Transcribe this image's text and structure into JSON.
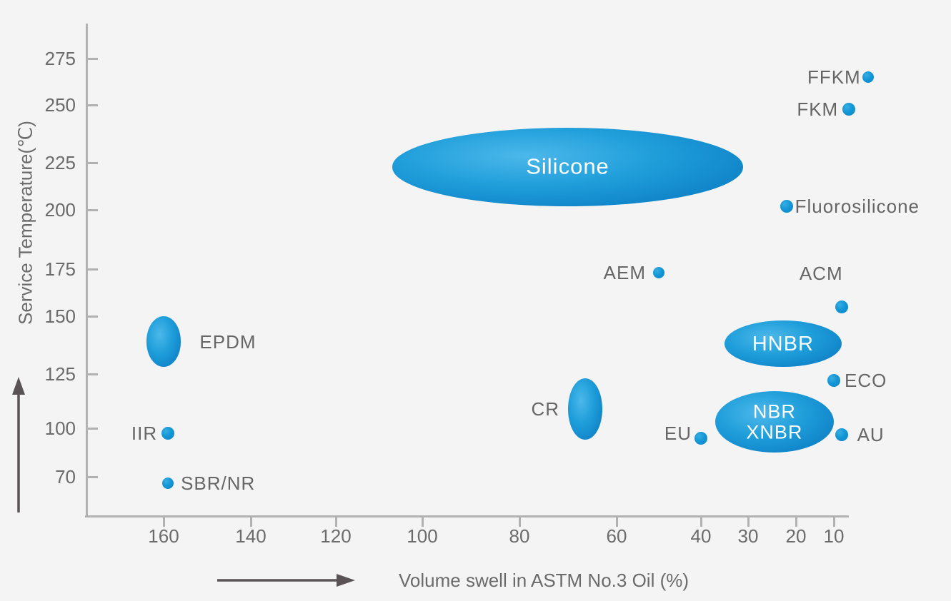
{
  "chart_data": {
    "type": "scatter",
    "title": "",
    "xlabel": "Volume swell in ASTM No.3 Oil (%)",
    "ylabel": "Service Temperature(℃)",
    "x_axis": {
      "ticks": [
        160,
        140,
        120,
        100,
        80,
        60,
        40,
        30,
        20,
        10
      ],
      "direction": "reversed (high values at left)",
      "unit": "%"
    },
    "y_axis": {
      "ticks": [
        275,
        250,
        225,
        200,
        175,
        150,
        125,
        100,
        70
      ],
      "unit": "℃"
    },
    "grid": false,
    "legend": false,
    "points": [
      {
        "label": "FFKM",
        "type": "dot",
        "x": 1,
        "y": 265,
        "r": 8,
        "label_side": "left",
        "label_gap": 2
      },
      {
        "label": "FKM",
        "type": "dot",
        "x": 6,
        "y": 248,
        "r": 9,
        "label_side": "left",
        "label_gap": 6
      },
      {
        "label": "Silicone",
        "type": "ellipse",
        "x_range": [
          107,
          31
        ],
        "y_range": [
          202,
          240
        ],
        "label_side": "inside",
        "font_size": 31
      },
      {
        "label": "Fluorosilicone",
        "type": "dot",
        "x": 22,
        "y": 202,
        "r": 9,
        "label_side": "right",
        "label_gap": 3
      },
      {
        "label": "AEM",
        "type": "dot",
        "x": 50,
        "y": 173,
        "r": 8,
        "label_side": "left",
        "label_gap": 10
      },
      {
        "label": "ACM",
        "type": "dot",
        "x": 8,
        "y": 155,
        "r": 9,
        "label_side": "above-left"
      },
      {
        "label": "EPDM",
        "type": "ellipse",
        "x_range": [
          164,
          156
        ],
        "y_range": [
          128,
          150
        ],
        "label_side": "right",
        "label_gap": 26
      },
      {
        "label": "HNBR",
        "type": "ellipse",
        "x_range": [
          35,
          8
        ],
        "y_range": [
          128,
          148
        ],
        "label_side": "inside",
        "font_size": 29
      },
      {
        "label": "ECO",
        "type": "dot",
        "x": 10,
        "y": 122,
        "r": 9,
        "label_side": "right",
        "label_gap": 6
      },
      {
        "label": "CR",
        "type": "ellipse",
        "x_range": [
          70,
          63
        ],
        "y_range": [
          93,
          123
        ],
        "label_side": "left",
        "label_gap": 12
      },
      {
        "label": "NBR\nXNBR",
        "type": "ellipse",
        "x_range": [
          37,
          10
        ],
        "y_range": [
          85,
          117
        ],
        "label_side": "inside",
        "font_size": 27
      },
      {
        "label": "EU",
        "type": "dot",
        "x": 40,
        "y": 94,
        "r": 9,
        "label_side": "left",
        "label_gap": 4,
        "label_dy": -7
      },
      {
        "label": "AU",
        "type": "dot",
        "x": 8,
        "y": 96,
        "r": 9,
        "label_side": "right",
        "label_gap": 13
      },
      {
        "label": "IIR",
        "type": "dot",
        "x": 159,
        "y": 97,
        "r": 9,
        "label_side": "left",
        "label_gap": 6
      },
      {
        "label": "SBR/NR",
        "type": "dot",
        "x": 159,
        "y": 66,
        "r": 8,
        "label_side": "right",
        "label_gap": 10
      }
    ]
  },
  "colors": {
    "dot_light": "#38ade2",
    "dot_dark": "#0c82c8",
    "ellipse_light": "#4cb8ea",
    "ellipse_dark": "#0a7ac2",
    "axis": "#b2b2b2",
    "tick_text": "#6b6b6b",
    "point_label_text": "#666666",
    "inside_label_text": "#ffffff",
    "arrow": "#595356",
    "background": "#f4f4f5"
  }
}
